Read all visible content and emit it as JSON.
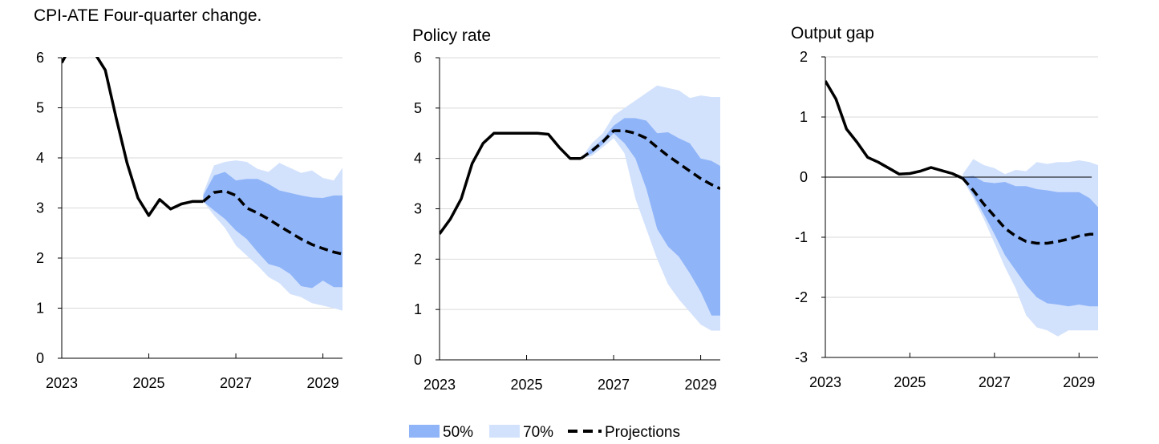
{
  "colors": {
    "band_50": "#8fb4f8",
    "band_70": "#d3e2fc",
    "line": "#000000",
    "grid": "#d9d9d9",
    "axis": "#000000"
  },
  "legend": {
    "band_50_label": "50%",
    "band_70_label": "70%",
    "projection_label": "Projections"
  },
  "chart_data": [
    {
      "type": "area",
      "title": "CPI-ATE Four-quarter change.",
      "xlabel": "",
      "ylabel": "",
      "xlim": [
        2023.0,
        2029.45
      ],
      "ylim": [
        0,
        6
      ],
      "yticks": [
        0,
        1,
        2,
        3,
        4,
        5,
        6
      ],
      "xticks": [
        2023,
        2025,
        2027,
        2029
      ],
      "xtick_labels": [
        "2023",
        "2025",
        "2027",
        "2029"
      ],
      "grid": true,
      "zero_line": false,
      "history": {
        "x": [
          2023.0,
          2023.25,
          2023.5,
          2023.75,
          2024.0,
          2024.25,
          2024.5,
          2024.75,
          2025.0,
          2025.25,
          2025.5,
          2025.75,
          2026.0,
          2026.25
        ],
        "y": [
          5.9,
          6.3,
          6.5,
          6.1,
          5.75,
          4.8,
          3.9,
          3.2,
          2.85,
          3.17,
          2.98,
          3.08,
          3.13,
          3.13
        ]
      },
      "projection": {
        "x": [
          2026.25,
          2026.5,
          2026.75,
          2027.0,
          2027.25,
          2027.5,
          2027.75,
          2028.0,
          2028.25,
          2028.5,
          2028.75,
          2029.0,
          2029.25,
          2029.45
        ],
        "y": [
          3.13,
          3.31,
          3.34,
          3.25,
          3.0,
          2.9,
          2.78,
          2.64,
          2.51,
          2.38,
          2.27,
          2.19,
          2.12,
          2.08
        ]
      },
      "band_50": {
        "x": [
          2026.25,
          2026.5,
          2026.75,
          2027.0,
          2027.25,
          2027.5,
          2027.75,
          2028.0,
          2028.25,
          2028.5,
          2028.75,
          2029.0,
          2029.25,
          2029.45
        ],
        "upper": [
          3.25,
          3.65,
          3.72,
          3.55,
          3.58,
          3.58,
          3.48,
          3.35,
          3.3,
          3.25,
          3.21,
          3.2,
          3.25,
          3.25
        ],
        "lower": [
          3.13,
          2.95,
          2.78,
          2.55,
          2.38,
          2.12,
          1.88,
          1.82,
          1.68,
          1.44,
          1.4,
          1.55,
          1.42,
          1.42
        ]
      },
      "band_70": {
        "x": [
          2026.25,
          2026.5,
          2026.75,
          2027.0,
          2027.25,
          2027.5,
          2027.75,
          2028.0,
          2028.25,
          2028.5,
          2028.75,
          2029.0,
          2029.25,
          2029.45
        ],
        "upper": [
          3.3,
          3.85,
          3.92,
          3.95,
          3.92,
          3.78,
          3.72,
          3.9,
          3.8,
          3.7,
          3.75,
          3.6,
          3.55,
          3.8
        ],
        "lower": [
          3.13,
          2.85,
          2.6,
          2.25,
          2.05,
          1.85,
          1.62,
          1.5,
          1.28,
          1.22,
          1.1,
          1.05,
          1.0,
          0.95
        ]
      }
    },
    {
      "type": "area",
      "title": "Policy rate",
      "xlabel": "",
      "ylabel": "",
      "xlim": [
        2023.0,
        2029.45
      ],
      "ylim": [
        0,
        6
      ],
      "yticks": [
        0,
        1,
        2,
        3,
        4,
        5,
        6
      ],
      "xticks": [
        2023,
        2025,
        2027,
        2029
      ],
      "xtick_labels": [
        "2023",
        "2025",
        "2027",
        "2029"
      ],
      "grid": true,
      "zero_line": false,
      "history": {
        "x": [
          2023.0,
          2023.25,
          2023.5,
          2023.75,
          2024.0,
          2024.25,
          2024.5,
          2024.75,
          2025.0,
          2025.25,
          2025.5,
          2025.75,
          2026.0,
          2026.25
        ],
        "y": [
          2.5,
          2.8,
          3.2,
          3.9,
          4.3,
          4.5,
          4.5,
          4.5,
          4.5,
          4.5,
          4.48,
          4.22,
          4.0,
          4.0
        ]
      },
      "projection": {
        "x": [
          2026.25,
          2026.5,
          2026.75,
          2027.0,
          2027.25,
          2027.5,
          2027.75,
          2028.0,
          2028.25,
          2028.5,
          2028.75,
          2029.0,
          2029.25,
          2029.45
        ],
        "y": [
          4.0,
          4.15,
          4.33,
          4.55,
          4.55,
          4.5,
          4.4,
          4.22,
          4.05,
          3.9,
          3.75,
          3.6,
          3.48,
          3.4
        ]
      },
      "band_50": {
        "x": [
          2026.25,
          2026.5,
          2026.75,
          2027.0,
          2027.25,
          2027.5,
          2027.75,
          2028.0,
          2028.25,
          2028.5,
          2028.75,
          2029.0,
          2029.25,
          2029.45
        ],
        "upper": [
          4.0,
          4.2,
          4.38,
          4.65,
          4.8,
          4.8,
          4.75,
          4.5,
          4.52,
          4.4,
          4.3,
          4.0,
          3.95,
          3.85
        ],
        "lower": [
          4.0,
          4.1,
          4.28,
          4.5,
          4.3,
          4.0,
          3.4,
          2.6,
          2.25,
          2.05,
          1.72,
          1.35,
          0.88,
          0.88
        ]
      },
      "band_70": {
        "x": [
          2026.25,
          2026.5,
          2026.75,
          2027.0,
          2027.25,
          2027.5,
          2027.75,
          2028.0,
          2028.25,
          2028.5,
          2028.75,
          2029.0,
          2029.25,
          2029.45
        ],
        "upper": [
          4.0,
          4.3,
          4.5,
          4.85,
          5.0,
          5.15,
          5.3,
          5.45,
          5.4,
          5.35,
          5.2,
          5.25,
          5.22,
          5.22
        ],
        "lower": [
          4.0,
          4.05,
          4.22,
          4.4,
          4.1,
          3.2,
          2.6,
          2.0,
          1.5,
          1.2,
          0.95,
          0.7,
          0.58,
          0.58
        ]
      }
    },
    {
      "type": "area",
      "title": "Output gap",
      "xlabel": "",
      "ylabel": "",
      "xlim": [
        2023.0,
        2029.45
      ],
      "ylim": [
        -3,
        2
      ],
      "yticks": [
        -3,
        -2,
        -1,
        0,
        1,
        2
      ],
      "xticks": [
        2023,
        2025,
        2027,
        2029
      ],
      "xtick_labels": [
        "2023",
        "2025",
        "2027",
        "2029"
      ],
      "grid": true,
      "zero_line": true,
      "history": {
        "x": [
          2023.0,
          2023.25,
          2023.5,
          2023.75,
          2024.0,
          2024.25,
          2024.5,
          2024.75,
          2025.0,
          2025.25,
          2025.5,
          2025.75,
          2026.0,
          2026.25
        ],
        "y": [
          1.6,
          1.3,
          0.8,
          0.58,
          0.33,
          0.25,
          0.15,
          0.05,
          0.06,
          0.1,
          0.16,
          0.11,
          0.06,
          -0.02
        ]
      },
      "projection": {
        "x": [
          2026.25,
          2026.5,
          2026.75,
          2027.0,
          2027.25,
          2027.5,
          2027.75,
          2028.0,
          2028.25,
          2028.5,
          2028.75,
          2029.0,
          2029.25,
          2029.45
        ],
        "y": [
          -0.02,
          -0.22,
          -0.45,
          -0.65,
          -0.85,
          -0.98,
          -1.07,
          -1.1,
          -1.1,
          -1.07,
          -1.03,
          -0.98,
          -0.95,
          -0.95
        ]
      },
      "band_50": {
        "x": [
          2026.25,
          2026.5,
          2026.75,
          2027.0,
          2027.25,
          2027.5,
          2027.75,
          2028.0,
          2028.25,
          2028.5,
          2028.75,
          2029.0,
          2029.25,
          2029.45
        ],
        "upper": [
          0.0,
          0.02,
          -0.08,
          -0.1,
          -0.08,
          -0.15,
          -0.15,
          -0.2,
          -0.22,
          -0.25,
          -0.25,
          -0.25,
          -0.35,
          -0.5
        ],
        "lower": [
          -0.02,
          -0.3,
          -0.62,
          -0.95,
          -1.3,
          -1.55,
          -1.8,
          -2.0,
          -2.1,
          -2.12,
          -2.15,
          -2.12,
          -2.15,
          -2.15
        ]
      },
      "band_70": {
        "x": [
          2026.25,
          2026.5,
          2026.75,
          2027.0,
          2027.25,
          2027.5,
          2027.75,
          2028.0,
          2028.25,
          2028.5,
          2028.75,
          2029.0,
          2029.25,
          2029.45
        ],
        "upper": [
          0.05,
          0.3,
          0.2,
          0.15,
          0.05,
          0.12,
          0.1,
          0.25,
          0.22,
          0.25,
          0.25,
          0.28,
          0.25,
          0.2
        ],
        "lower": [
          -0.05,
          -0.35,
          -0.7,
          -1.1,
          -1.5,
          -1.85,
          -2.3,
          -2.5,
          -2.55,
          -2.65,
          -2.55,
          -2.55,
          -2.55,
          -2.55
        ]
      }
    }
  ]
}
